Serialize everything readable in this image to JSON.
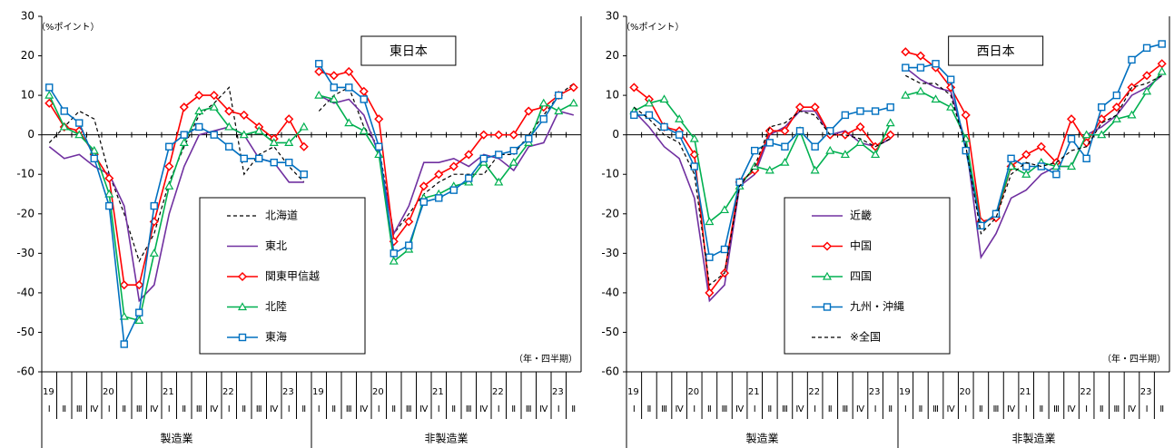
{
  "chart_data": [
    {
      "type": "line",
      "title": "東日本",
      "y_label": "（%ポイント）",
      "x_label": "（年・四半期）",
      "segments": [
        "製造業",
        "非製造業"
      ],
      "years": [
        "19",
        null,
        null,
        null,
        "20",
        null,
        null,
        null,
        "21",
        null,
        null,
        null,
        "22",
        null,
        null,
        null,
        "23",
        null
      ],
      "quarters": [
        "Ⅰ",
        "Ⅱ",
        "Ⅲ",
        "Ⅳ",
        "Ⅰ",
        "Ⅱ",
        "Ⅲ",
        "Ⅳ",
        "Ⅰ",
        "Ⅱ",
        "Ⅲ",
        "Ⅳ",
        "Ⅰ",
        "Ⅱ",
        "Ⅲ",
        "Ⅳ",
        "Ⅰ",
        "Ⅱ"
      ],
      "ylim": [
        -60,
        30
      ],
      "yticks": [
        -60,
        -50,
        -40,
        -30,
        -20,
        -10,
        0,
        10,
        20,
        30
      ],
      "series": [
        {
          "name": "北海道",
          "color": "#000000",
          "marker": "none",
          "dash": true,
          "values": [
            [
              -2,
              2,
              6,
              4,
              -10,
              -20,
              -32,
              -25,
              -12,
              -3,
              5,
              8,
              12,
              -10,
              -5,
              -3,
              -8,
              -12
            ],
            [
              6,
              10,
              12,
              2,
              -3,
              -25,
              -20,
              -15,
              -12,
              -10,
              -10,
              -10,
              -5,
              -5,
              0,
              5,
              10,
              13
            ]
          ]
        },
        {
          "name": "東北",
          "color": "#7030a0",
          "marker": "none",
          "dash": false,
          "values": [
            [
              -3,
              -6,
              -5,
              -8,
              -10,
              -18,
              -42,
              -38,
              -20,
              -8,
              0,
              1,
              2,
              0,
              -6,
              -7,
              -12,
              -12
            ],
            [
              10,
              8,
              9,
              5,
              -5,
              -25,
              -18,
              -7,
              -7,
              -6,
              -8,
              -5,
              -6,
              -9,
              -3,
              -2,
              6,
              5
            ]
          ]
        },
        {
          "name": "関東甲信越",
          "color": "#ff0000",
          "marker": "diamond",
          "dash": false,
          "values": [
            [
              8,
              2,
              1,
              -5,
              -11,
              -38,
              -38,
              -22,
              -8,
              7,
              10,
              10,
              6,
              5,
              2,
              -1,
              4,
              -3
            ],
            [
              16,
              15,
              16,
              11,
              4,
              -27,
              -22,
              -13,
              -10,
              -8,
              -5,
              0,
              0,
              0,
              6,
              7,
              10,
              12
            ]
          ]
        },
        {
          "name": "北陸",
          "color": "#00b050",
          "marker": "triangle",
          "dash": false,
          "values": [
            [
              10,
              2,
              0,
              -4,
              -15,
              -46,
              -47,
              -30,
              -13,
              -2,
              6,
              7,
              2,
              0,
              1,
              -2,
              -2,
              2
            ],
            [
              10,
              9,
              3,
              1,
              -5,
              -32,
              -29,
              -16,
              -15,
              -13,
              -12,
              -7,
              -12,
              -7,
              -2,
              8,
              6,
              8
            ]
          ]
        },
        {
          "name": "東海",
          "color": "#0070c0",
          "marker": "square",
          "dash": false,
          "values": [
            [
              12,
              6,
              3,
              -6,
              -18,
              -53,
              -45,
              -18,
              -3,
              0,
              2,
              0,
              -3,
              -6,
              -6,
              -7,
              -7,
              -10
            ],
            [
              18,
              12,
              12,
              9,
              -3,
              -30,
              -28,
              -17,
              -16,
              -14,
              -11,
              -6,
              -5,
              -4,
              -1,
              4,
              10,
              null
            ]
          ]
        }
      ]
    },
    {
      "type": "line",
      "title": "西日本",
      "y_label": "（%ポイント）",
      "x_label": "（年・四半期）",
      "segments": [
        "製造業",
        "非製造業"
      ],
      "years": [
        "19",
        null,
        null,
        null,
        "20",
        null,
        null,
        null,
        "21",
        null,
        null,
        null,
        "22",
        null,
        null,
        null,
        "23",
        null
      ],
      "quarters": [
        "Ⅰ",
        "Ⅱ",
        "Ⅲ",
        "Ⅳ",
        "Ⅰ",
        "Ⅱ",
        "Ⅲ",
        "Ⅳ",
        "Ⅰ",
        "Ⅱ",
        "Ⅲ",
        "Ⅳ",
        "Ⅰ",
        "Ⅱ",
        "Ⅲ",
        "Ⅳ",
        "Ⅰ",
        "Ⅱ"
      ],
      "ylim": [
        -60,
        30
      ],
      "yticks": [
        -60,
        -50,
        -40,
        -30,
        -20,
        -10,
        0,
        10,
        20,
        30
      ],
      "series": [
        {
          "name": "近畿",
          "color": "#7030a0",
          "marker": "none",
          "dash": false,
          "values": [
            [
              6,
              2,
              -3,
              -6,
              -16,
              -42,
              -38,
              -13,
              -10,
              0,
              2,
              6,
              6,
              0,
              1,
              -2,
              -3,
              -1
            ],
            [
              17,
              14,
              12,
              11,
              -2,
              -31,
              -25,
              -16,
              -14,
              -10,
              -8,
              -8,
              0,
              2,
              5,
              10,
              12,
              15
            ]
          ]
        },
        {
          "name": "中国",
          "color": "#ff0000",
          "marker": "diamond",
          "dash": false,
          "values": [
            [
              12,
              9,
              2,
              1,
              -5,
              -40,
              -35,
              -12,
              -9,
              1,
              1,
              7,
              7,
              0,
              0,
              2,
              -3,
              0
            ],
            [
              21,
              20,
              17,
              12,
              5,
              -22,
              -21,
              -8,
              -5,
              -3,
              -7,
              4,
              -2,
              4,
              7,
              12,
              15,
              18
            ]
          ]
        },
        {
          "name": "四国",
          "color": "#00b050",
          "marker": "triangle",
          "dash": false,
          "values": [
            [
              6,
              8,
              9,
              4,
              -1,
              -22,
              -19,
              -13,
              -8,
              -9,
              -7,
              1,
              -9,
              -4,
              -5,
              -2,
              -5,
              3
            ],
            [
              10,
              11,
              9,
              7,
              -1,
              -23,
              -20,
              -8,
              -10,
              -7,
              -8,
              -8,
              0,
              0,
              4,
              5,
              11,
              16
            ]
          ]
        },
        {
          "name": "九州・沖縄",
          "color": "#0070c0",
          "marker": "square",
          "dash": false,
          "values": [
            [
              5,
              5,
              2,
              0,
              -8,
              -31,
              -29,
              -12,
              -4,
              -2,
              -3,
              1,
              -3,
              1,
              5,
              6,
              6,
              7
            ],
            [
              17,
              17,
              18,
              14,
              -4,
              -23,
              -20,
              -6,
              -8,
              -8,
              -10,
              -1,
              -6,
              7,
              10,
              19,
              22,
              23
            ]
          ]
        },
        {
          "name": "※全国",
          "color": "#000000",
          "marker": "none",
          "dash": true,
          "values": [
            [
              7,
              4,
              0,
              -2,
              -10,
              -38,
              -35,
              -13,
              -8,
              2,
              3,
              6,
              5,
              0,
              0,
              -1,
              -3,
              -1
            ],
            [
              15,
              13,
              13,
              10,
              -3,
              -25,
              -21,
              -10,
              -7,
              -8,
              -7,
              -4,
              -3,
              3,
              5,
              12,
              13,
              15
            ]
          ]
        }
      ]
    }
  ]
}
